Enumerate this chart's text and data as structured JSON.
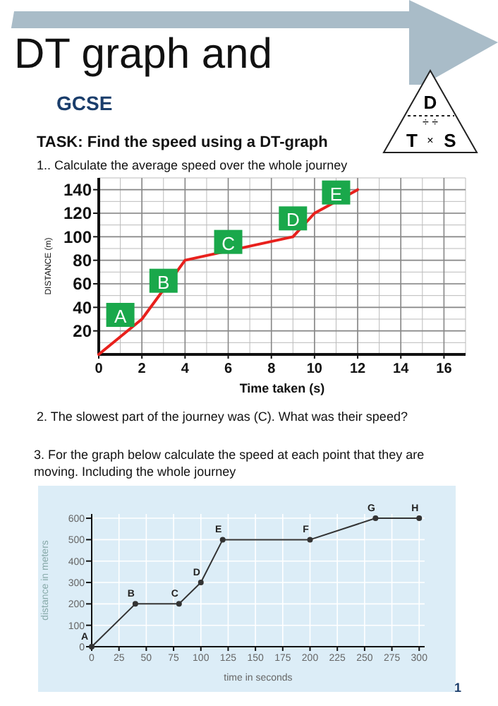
{
  "chart_data": [
    {
      "type": "line",
      "title": "DT graph and",
      "subtitle": "GCSE",
      "xlabel": "Time taken (s)",
      "ylabel": "DISTANCE (m)",
      "x": [
        0,
        2,
        4,
        9,
        10,
        12
      ],
      "series": [
        {
          "color": "#e8201c",
          "values": [
            0,
            30,
            80,
            100,
            120,
            140
          ]
        }
      ],
      "xlim": [
        0,
        17
      ],
      "ylim": [
        0,
        150
      ],
      "xticks": [
        0,
        2,
        4,
        6,
        8,
        10,
        12,
        14,
        16
      ],
      "yticks": [
        20,
        40,
        60,
        80,
        100,
        120,
        140
      ],
      "grid": true,
      "marker": "none",
      "line_style": "solid",
      "annotations": [
        "TASK: Find the speed using a DT-graph",
        "1.. Calculate the average speed over the whole journey",
        "D",
        "÷ ÷",
        "T",
        "×",
        "S",
        "2. The slowest part of the journey was (C). What was their speed?",
        {
          "text": "A",
          "x": 1,
          "y": 33
        },
        {
          "text": "B",
          "x": 3,
          "y": 62
        },
        {
          "text": "C",
          "x": 6,
          "y": 95
        },
        {
          "text": "D",
          "x": 9,
          "y": 115
        },
        {
          "text": "E",
          "x": 11,
          "y": 137
        }
      ]
    },
    {
      "type": "line",
      "title": "3. For the graph below calculate the speed at each point that they are moving. Including the whole journey",
      "xlabel": "time in seconds",
      "ylabel": "distance in meters",
      "x": [
        0,
        40,
        80,
        100,
        120,
        200,
        260,
        300
      ],
      "series": [
        {
          "color": "#333333",
          "values": [
            0,
            200,
            200,
            300,
            500,
            500,
            600,
            600
          ]
        }
      ],
      "xlim": [
        0,
        305
      ],
      "ylim": [
        0,
        620
      ],
      "xticks": [
        0,
        25,
        50,
        75,
        100,
        125,
        150,
        175,
        200,
        225,
        250,
        275,
        300
      ],
      "yticks": [
        0,
        100,
        200,
        300,
        400,
        500,
        600
      ],
      "grid": true,
      "marker": "circle",
      "line_style": "solid",
      "annotations": [
        {
          "text": "A",
          "x": 0,
          "y": 0
        },
        {
          "text": "B",
          "x": 40,
          "y": 200
        },
        {
          "text": "C",
          "x": 80,
          "y": 200
        },
        {
          "text": "D",
          "x": 100,
          "y": 300
        },
        {
          "text": "E",
          "x": 120,
          "y": 500
        },
        {
          "text": "F",
          "x": 200,
          "y": 500
        },
        {
          "text": "G",
          "x": 260,
          "y": 600
        },
        {
          "text": "H",
          "x": 300,
          "y": 600
        },
        "1"
      ]
    }
  ]
}
